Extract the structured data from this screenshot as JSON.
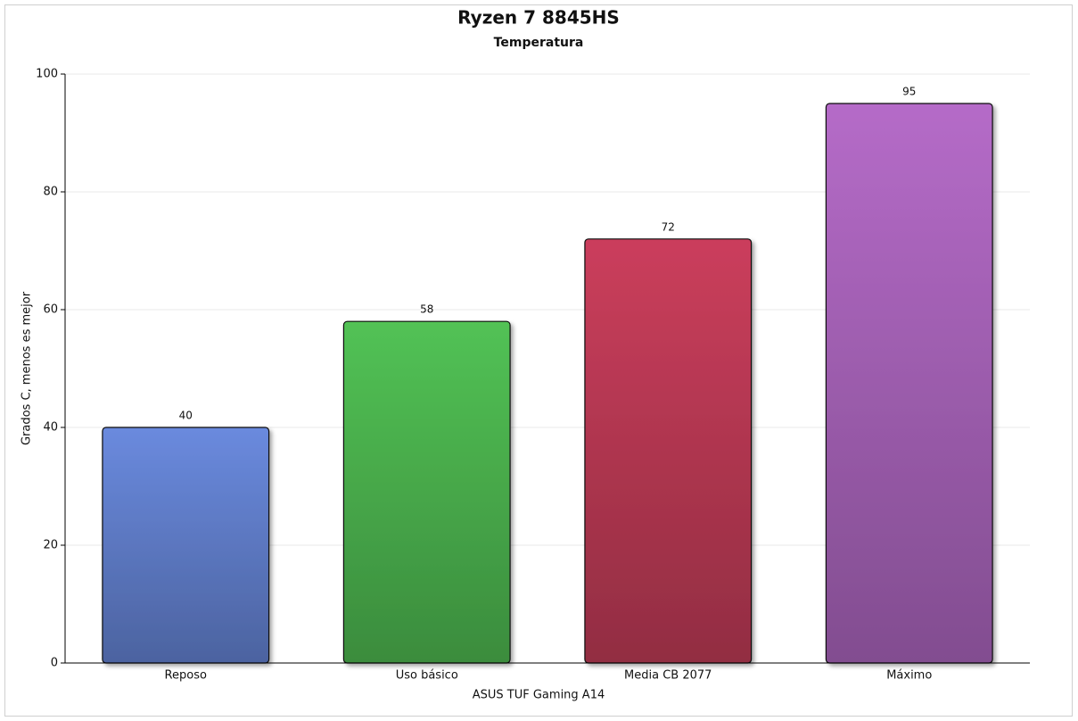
{
  "chart_data": {
    "type": "bar",
    "title": "Ryzen 7 8845HS",
    "subtitle": "Temperatura",
    "y_label": "Grados C, menos es mejor",
    "x_label": "ASUS TUF Gaming A14",
    "categories": [
      "Reposo",
      "Uso básico",
      "Media CB 2077",
      "Máximo"
    ],
    "values": [
      40,
      58,
      72,
      95
    ],
    "colors": [
      "#6a8ade",
      "#52c255",
      "#cb3e5c",
      "#b56bc8"
    ],
    "ylim": [
      0,
      100
    ],
    "yticks": [
      0,
      20,
      40,
      60,
      80,
      100
    ],
    "grid": true
  }
}
